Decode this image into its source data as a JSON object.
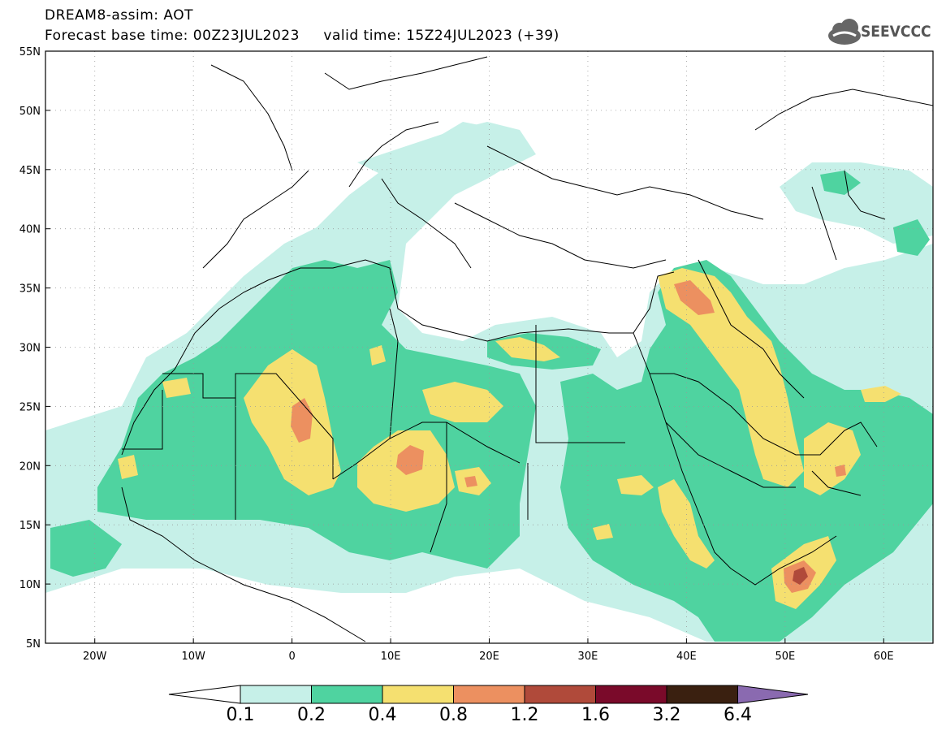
{
  "title": {
    "line1": "DREAM8-assim: AOT",
    "line2": "Forecast base time: 00Z23JUL2023     valid time: 15Z24JUL2023 (+39)"
  },
  "logo": {
    "text": "SEEVCCC"
  },
  "axes": {
    "lat_labels": [
      "55N",
      "50N",
      "45N",
      "40N",
      "35N",
      "30N",
      "25N",
      "20N",
      "15N",
      "10N",
      "5N"
    ],
    "lon_labels": [
      "20W",
      "10W",
      "0",
      "10E",
      "20E",
      "30E",
      "40E",
      "50E",
      "60E"
    ],
    "lat_range": [
      5,
      55
    ],
    "lon_range": [
      -25,
      65
    ]
  },
  "colorbar": {
    "labels": [
      "0.1",
      "0.2",
      "0.4",
      "0.8",
      "1.2",
      "1.6",
      "3.2",
      "6.4"
    ],
    "colors": [
      "#ffffff",
      "#c6f0e8",
      "#4fd3a0",
      "#f5e070",
      "#ec9060",
      "#b04a3a",
      "#7a0a2a",
      "#3a2010",
      "#8a6ab0"
    ]
  },
  "map_data": {
    "type": "filled-contour",
    "variable": "AOT",
    "levels": [
      0.1,
      0.2,
      0.4,
      0.8,
      1.2,
      1.6,
      3.2,
      6.4
    ],
    "grid": "dotted"
  }
}
